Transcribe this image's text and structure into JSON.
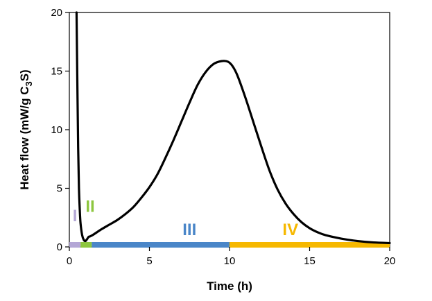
{
  "chart_data": {
    "type": "line",
    "title": "",
    "xlabel": "Time (h)",
    "ylabel_parts": [
      "Heat flow (mW/g C",
      "3",
      "S)"
    ],
    "xlim": [
      0,
      20
    ],
    "ylim": [
      0,
      20
    ],
    "xticks": [
      0,
      5,
      10,
      15,
      20
    ],
    "yticks": [
      0,
      5,
      10,
      15,
      20
    ],
    "xtick_labels": [
      "0",
      "5",
      "10",
      "15",
      "20"
    ],
    "ytick_labels": [
      "0",
      "5",
      "10",
      "15",
      "20"
    ],
    "grid": false,
    "series": [
      {
        "color": "#000000",
        "x": [
          0.45,
          0.5,
          0.55,
          0.6,
          0.65,
          0.7,
          0.8,
          0.9,
          1.0,
          1.1,
          1.2,
          1.3,
          1.5,
          2.0,
          2.5,
          3.0,
          3.5,
          4.0,
          4.5,
          5.0,
          5.5,
          6.0,
          6.5,
          7.0,
          7.5,
          8.0,
          8.5,
          9.0,
          9.5,
          9.9,
          10.2,
          10.5,
          11.0,
          11.5,
          12.0,
          12.5,
          13.0,
          13.5,
          14.0,
          14.5,
          15.0,
          15.5,
          16.0,
          17.0,
          18.0,
          19.0,
          20.0
        ],
        "y": [
          20,
          14,
          8.5,
          5.0,
          3.2,
          2.0,
          1.0,
          0.6,
          0.5,
          0.65,
          0.85,
          0.9,
          1.05,
          1.5,
          1.9,
          2.3,
          2.8,
          3.4,
          4.2,
          5.1,
          6.2,
          7.6,
          9.1,
          10.7,
          12.3,
          13.8,
          14.9,
          15.6,
          15.85,
          15.8,
          15.4,
          14.6,
          12.7,
          10.6,
          8.5,
          6.5,
          4.9,
          3.7,
          2.8,
          2.1,
          1.6,
          1.25,
          1.0,
          0.7,
          0.5,
          0.38,
          0.33
        ]
      }
    ],
    "phases": [
      {
        "label": "I",
        "start": 0,
        "end": 0.7,
        "color": "#b4a7d6"
      },
      {
        "label": "II",
        "start": 0.7,
        "end": 1.4,
        "color": "#8dc63f"
      },
      {
        "label": "III",
        "start": 1.4,
        "end": 10,
        "color": "#4a86c8"
      },
      {
        "label": "IV",
        "start": 10,
        "end": 20,
        "color": "#f6b800"
      }
    ]
  }
}
